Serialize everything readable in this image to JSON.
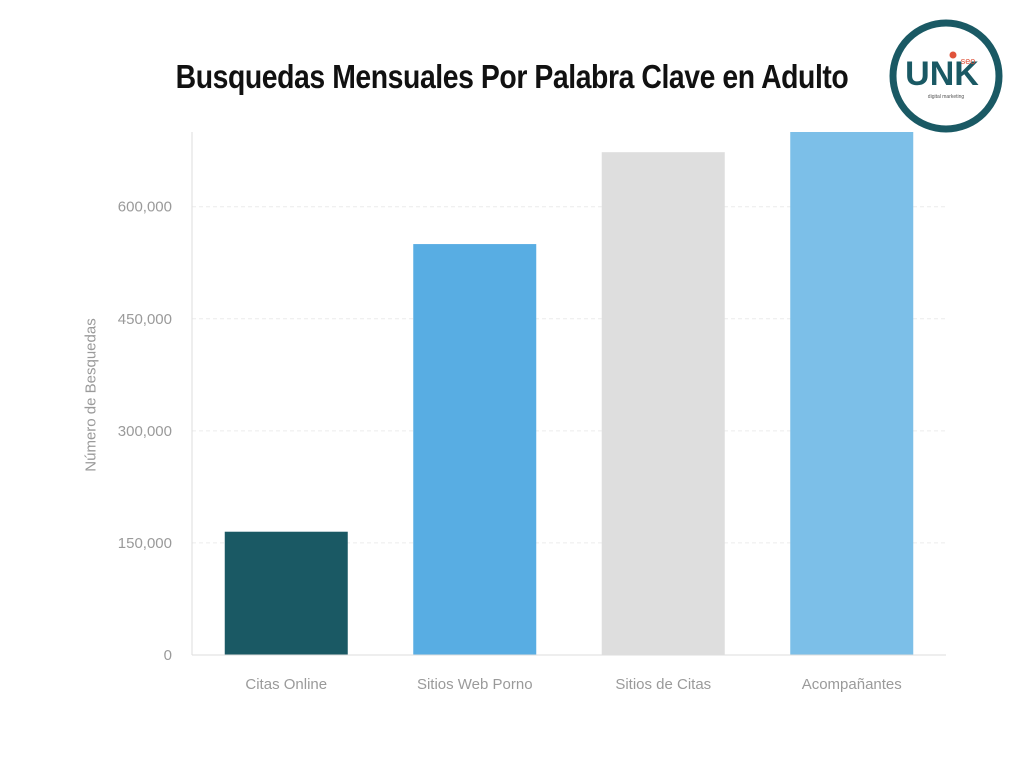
{
  "chart_data": {
    "type": "bar",
    "title": "Busquedas Mensuales Por Palabra Clave en Adulto",
    "xlabel": "",
    "ylabel": "Número de Besquedas",
    "categories": [
      "Citas Online",
      "Sitios Web Porno",
      "Sitios de Citas",
      "Acompañantes"
    ],
    "values": [
      165000,
      550000,
      673000,
      700000
    ],
    "colors": [
      "#1a5964",
      "#58ade3",
      "#dedede",
      "#7cbfe8"
    ],
    "ylim": [
      0,
      700000
    ],
    "yticks": [
      0,
      150000,
      300000,
      450000,
      600000
    ],
    "ytick_labels": [
      "0",
      "150,000",
      "300,000",
      "450,000",
      "600,000"
    ],
    "grid": true,
    "legend": "none"
  },
  "logo": {
    "wordmark": "UNK",
    "superscript": "seo",
    "tagline": "digital marketing",
    "ring_color": "#1a5964",
    "accent_color": "#e0533b"
  }
}
